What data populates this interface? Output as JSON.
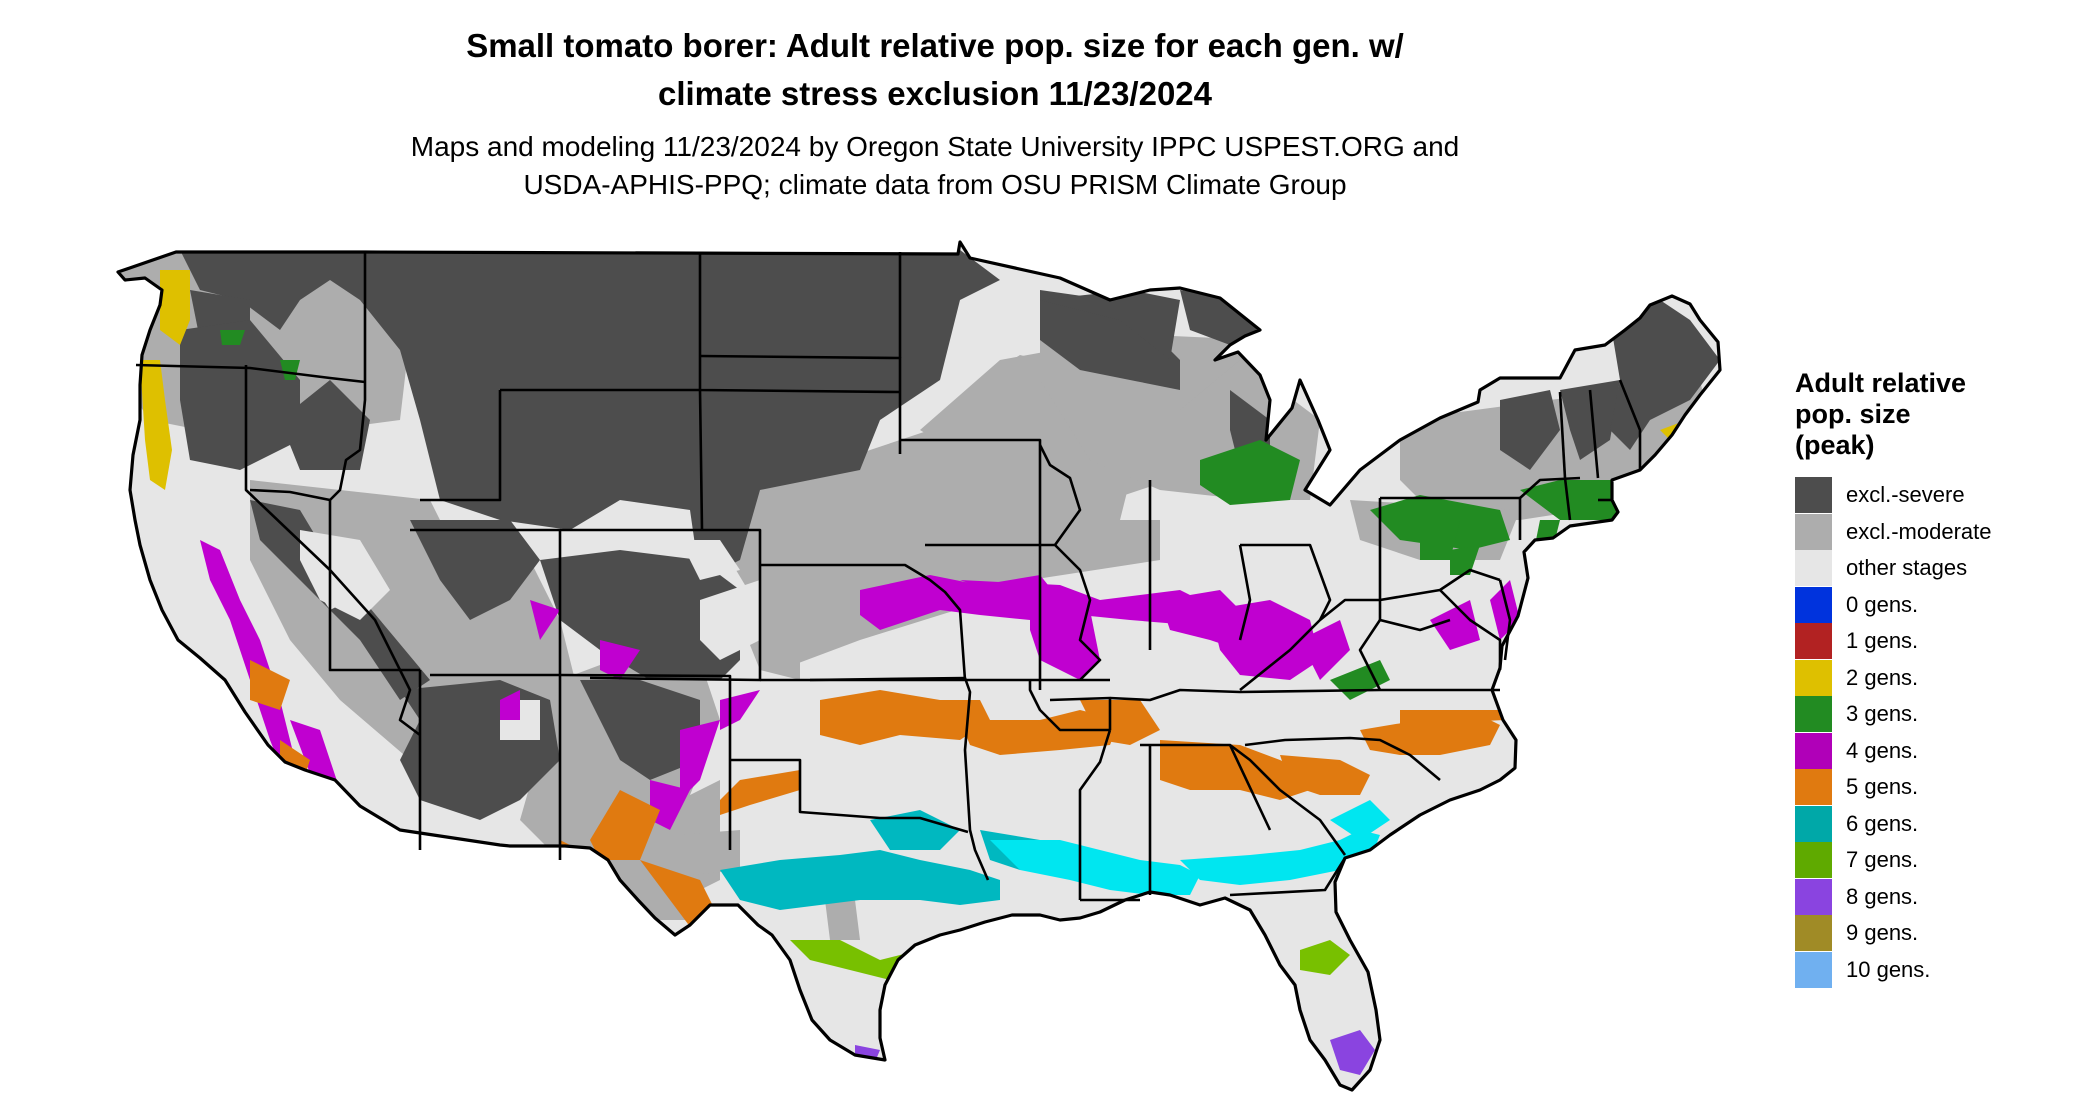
{
  "title": {
    "line1": "Small tomato borer: Adult relative pop. size for each gen. w/",
    "line2": "climate stress exclusion 11/23/2024"
  },
  "subtitle": {
    "line1": "Maps and modeling 11/23/2024 by Oregon State University IPPC USPEST.ORG and",
    "line2": "USDA-APHIS-PPQ; climate data from OSU PRISM Climate Group"
  },
  "legend": {
    "title_line1": "Adult relative",
    "title_line2": "pop. size",
    "title_line3": "(peak)",
    "items": [
      {
        "label": "excl.-severe",
        "color": "#4d4d4d"
      },
      {
        "label": "excl.-moderate",
        "color": "#adadad"
      },
      {
        "label": "other stages",
        "color": "#e6e6e6"
      },
      {
        "label": "0 gens.",
        "color": "#0033dd"
      },
      {
        "label": "1 gens.",
        "color": "#b22222"
      },
      {
        "label": "2 gens.",
        "color": "#dec000"
      },
      {
        "label": "3 gens.",
        "color": "#228b22"
      },
      {
        "label": "4 gens.",
        "color": "#b000b8"
      },
      {
        "label": "5 gens.",
        "color": "#e07a10"
      },
      {
        "label": "6 gens.",
        "color": "#00a8a8"
      },
      {
        "label": "7 gens.",
        "color": "#5faa00"
      },
      {
        "label": "8 gens.",
        "color": "#8a44e0"
      },
      {
        "label": "9 gens.",
        "color": "#a08b26"
      },
      {
        "label": "10 gens.",
        "color": "#70b0f0"
      }
    ]
  }
}
